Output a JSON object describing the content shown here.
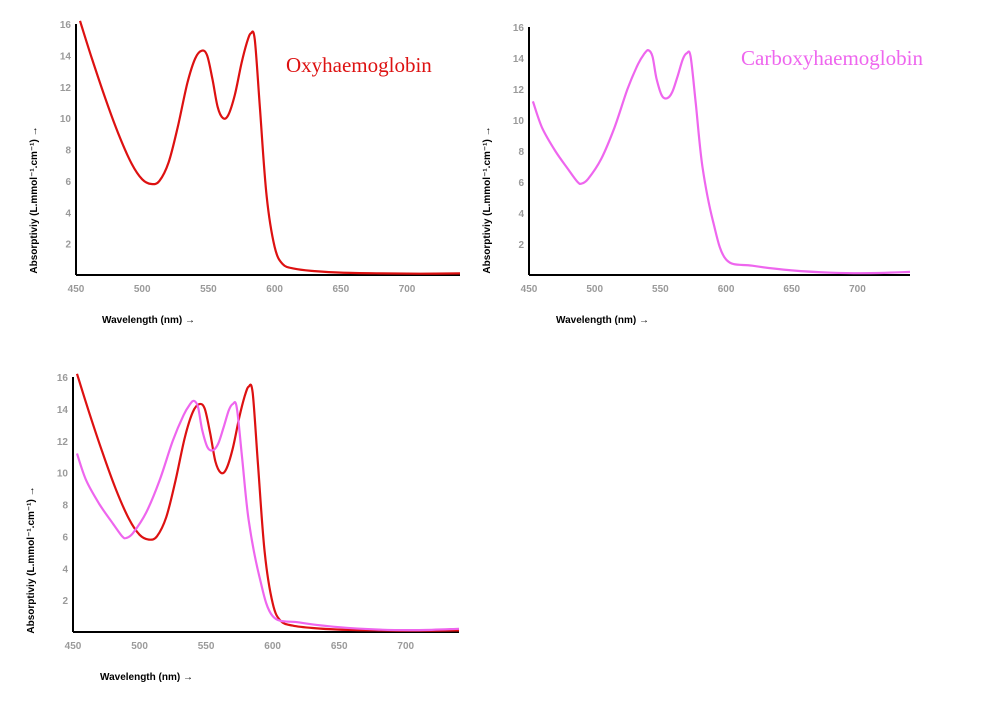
{
  "colors": {
    "oxy": "#dd1111",
    "carboxy": "#ee66ee",
    "axis": "#000000",
    "tick": "#9a9a9a"
  },
  "chart_data": [
    {
      "type": "line",
      "xlabel": "Wavelength (nm) →",
      "ylabel": "Absorptiviy (L.mmol⁻¹.cm⁻¹) →",
      "xlim": [
        450,
        740
      ],
      "ylim": [
        0,
        16
      ],
      "x_ticks": [
        "450",
        "500",
        "550",
        "600",
        "650",
        "700"
      ],
      "y_ticks": [
        "2",
        "4",
        "6",
        "8",
        "10",
        "12",
        "14",
        "16"
      ],
      "series": [
        {
          "name": "Oxyhaemoglobin",
          "color": "#dd1111",
          "x": [
            453,
            462,
            472,
            482,
            492,
            500,
            507,
            513,
            520,
            527,
            534,
            540,
            545,
            549,
            553,
            557,
            561,
            565,
            570,
            575,
            579,
            582,
            585,
            589,
            594,
            600,
            606,
            615,
            630,
            650,
            680,
            710,
            740
          ],
          "y": [
            16.2,
            13.8,
            11.3,
            9.0,
            7.1,
            6.1,
            5.8,
            6.0,
            7.2,
            9.5,
            12.2,
            13.8,
            14.3,
            14.0,
            12.5,
            10.7,
            10.0,
            10.2,
            11.5,
            13.5,
            14.8,
            15.4,
            15.0,
            10.5,
            5.0,
            1.8,
            0.7,
            0.4,
            0.25,
            0.15,
            0.1,
            0.08,
            0.1
          ]
        }
      ]
    },
    {
      "type": "line",
      "xlabel": "Wavelength (nm) →",
      "ylabel": "Absorptiviy (L.mmol⁻¹.cm⁻¹) →",
      "xlim": [
        450,
        740
      ],
      "ylim": [
        0,
        16
      ],
      "x_ticks": [
        "450",
        "500",
        "550",
        "600",
        "650",
        "700"
      ],
      "y_ticks": [
        "2",
        "4",
        "6",
        "8",
        "10",
        "12",
        "14",
        "16"
      ],
      "series": [
        {
          "name": "Carboxyhaemoglobin",
          "color": "#ee66ee",
          "x": [
            453,
            460,
            470,
            480,
            487,
            490,
            495,
            505,
            515,
            525,
            533,
            538,
            541,
            544,
            547,
            551,
            555,
            559,
            563,
            567,
            570,
            573,
            577,
            582,
            590,
            600,
            620,
            650,
            680,
            710,
            740
          ],
          "y": [
            11.2,
            9.5,
            8.0,
            6.8,
            6.0,
            5.9,
            6.2,
            7.5,
            9.5,
            12.0,
            13.6,
            14.3,
            14.5,
            14.1,
            12.7,
            11.6,
            11.4,
            11.8,
            12.8,
            13.9,
            14.3,
            14.1,
            11.0,
            7.0,
            3.5,
            1.0,
            0.6,
            0.3,
            0.15,
            0.12,
            0.2
          ]
        }
      ]
    },
    {
      "type": "line",
      "xlabel": "Wavelength (nm) →",
      "ylabel": "Absorptiviy (L.mmol⁻¹.cm⁻¹) →",
      "xlim": [
        450,
        740
      ],
      "ylim": [
        0,
        16
      ],
      "x_ticks": [
        "450",
        "500",
        "550",
        "600",
        "650",
        "700"
      ],
      "y_ticks": [
        "2",
        "4",
        "6",
        "8",
        "10",
        "12",
        "14",
        "16"
      ],
      "series": [
        {
          "name": "Oxyhaemoglobin",
          "color": "#dd1111",
          "x": [
            453,
            462,
            472,
            482,
            492,
            500,
            507,
            513,
            520,
            527,
            534,
            540,
            545,
            549,
            553,
            557,
            561,
            565,
            570,
            575,
            579,
            582,
            585,
            589,
            594,
            600,
            606,
            615,
            630,
            650,
            680,
            710,
            740
          ],
          "y": [
            16.2,
            13.8,
            11.3,
            9.0,
            7.1,
            6.1,
            5.8,
            6.0,
            7.2,
            9.5,
            12.2,
            13.8,
            14.3,
            14.0,
            12.5,
            10.7,
            10.0,
            10.2,
            11.5,
            13.5,
            14.8,
            15.4,
            15.0,
            10.5,
            5.0,
            1.8,
            0.7,
            0.4,
            0.25,
            0.15,
            0.1,
            0.08,
            0.1
          ]
        },
        {
          "name": "Carboxyhaemoglobin",
          "color": "#ee66ee",
          "x": [
            453,
            460,
            470,
            480,
            487,
            490,
            495,
            505,
            515,
            525,
            533,
            538,
            541,
            544,
            547,
            551,
            555,
            559,
            563,
            567,
            570,
            573,
            577,
            582,
            590,
            600,
            620,
            650,
            680,
            710,
            740
          ],
          "y": [
            11.2,
            9.5,
            8.0,
            6.8,
            6.0,
            5.9,
            6.2,
            7.5,
            9.5,
            12.0,
            13.6,
            14.3,
            14.5,
            14.1,
            12.7,
            11.6,
            11.4,
            11.8,
            12.8,
            13.9,
            14.3,
            14.1,
            11.0,
            7.0,
            3.5,
            1.0,
            0.6,
            0.3,
            0.15,
            0.12,
            0.2
          ]
        }
      ]
    }
  ],
  "annotations": {
    "oxy_title": "Oxyhaemoglobin",
    "carboxy_title": "Carboxyhaemoglobin"
  }
}
